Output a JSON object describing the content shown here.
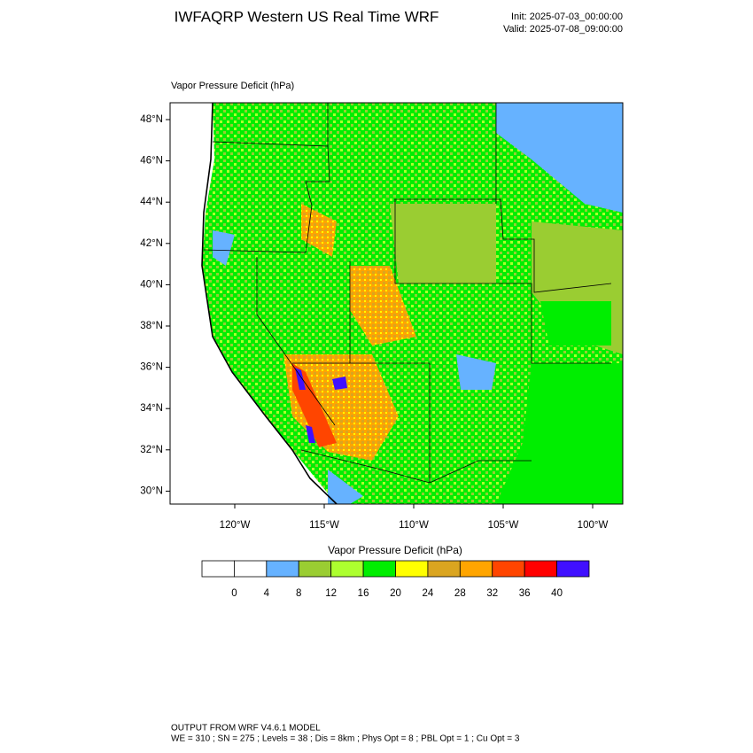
{
  "header": {
    "title": "IWFAQRP Western US Real Time WRF",
    "init": "Init: 2025-07-03_00:00:00",
    "valid": "Valid: 2025-07-08_09:00:00"
  },
  "map": {
    "label": "Vapor Pressure Deficit   (hPa)",
    "lat_ticks": [
      "48°N",
      "46°N",
      "44°N",
      "42°N",
      "40°N",
      "38°N",
      "36°N",
      "34°N",
      "32°N",
      "30°N"
    ],
    "lon_ticks": [
      "120°W",
      "115°W",
      "110°W",
      "105°W",
      "100°W"
    ]
  },
  "colorbar": {
    "title": "Vapor Pressure Deficit  (hPa)",
    "colors": [
      "#ffffff",
      "#ffffff",
      "#66b2ff",
      "#9acd32",
      "#adff2f",
      "#00ee00",
      "#ffff00",
      "#daa520",
      "#ffa500",
      "#ff4500",
      "#ff0000",
      "#4010ff"
    ],
    "labels": [
      "0",
      "4",
      "8",
      "12",
      "16",
      "20",
      "24",
      "28",
      "32",
      "36",
      "40"
    ]
  },
  "footer": {
    "line1": "OUTPUT FROM WRF V4.6.1 MODEL",
    "line2": "WE = 310 ; SN = 275 ; Levels = 38 ; Dis = 8km ; Phys Opt = 8 ; PBL Opt = 1 ; Cu Opt = 3"
  }
}
